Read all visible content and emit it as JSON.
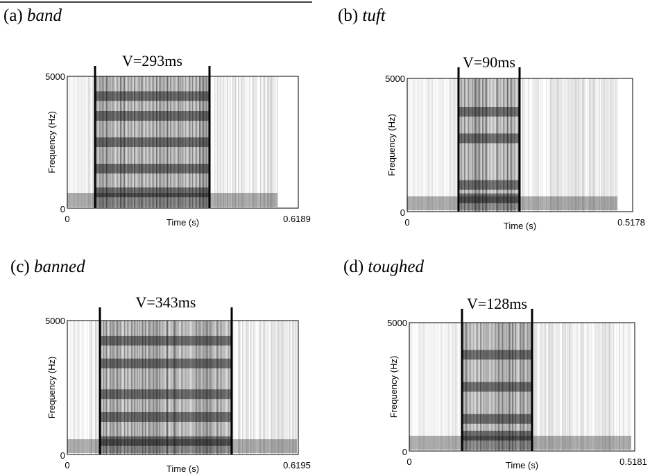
{
  "panels": [
    {
      "label": "(a)",
      "word": "band",
      "duration": "V=293ms",
      "y_max": "5000",
      "y_min": "0",
      "x_min": "0",
      "x_max": "0.6189",
      "y_axis_label": "Frequency (Hz)",
      "x_axis_label": "Time (s)"
    },
    {
      "label": "(b)",
      "word": "tuft",
      "duration": "V=90ms",
      "y_max": "5000",
      "y_min": "0",
      "x_min": "0",
      "x_max": "0.5178",
      "y_axis_label": "Frequency (Hz)",
      "x_axis_label": "Time (s)"
    },
    {
      "label": "(c)",
      "word": "banned",
      "duration": "V=343ms",
      "y_max": "5000",
      "y_min": "0",
      "x_min": "0",
      "x_max": "0.6195",
      "y_axis_label": "Frequency (Hz)",
      "x_axis_label": "Time (s)"
    },
    {
      "label": "(d)",
      "word": "toughed",
      "duration": "V=128ms",
      "y_max": "5000",
      "y_min": "0",
      "x_min": "0",
      "x_max": "0.5181",
      "y_axis_label": "Frequency (Hz)",
      "x_axis_label": "Time (s)"
    }
  ]
}
